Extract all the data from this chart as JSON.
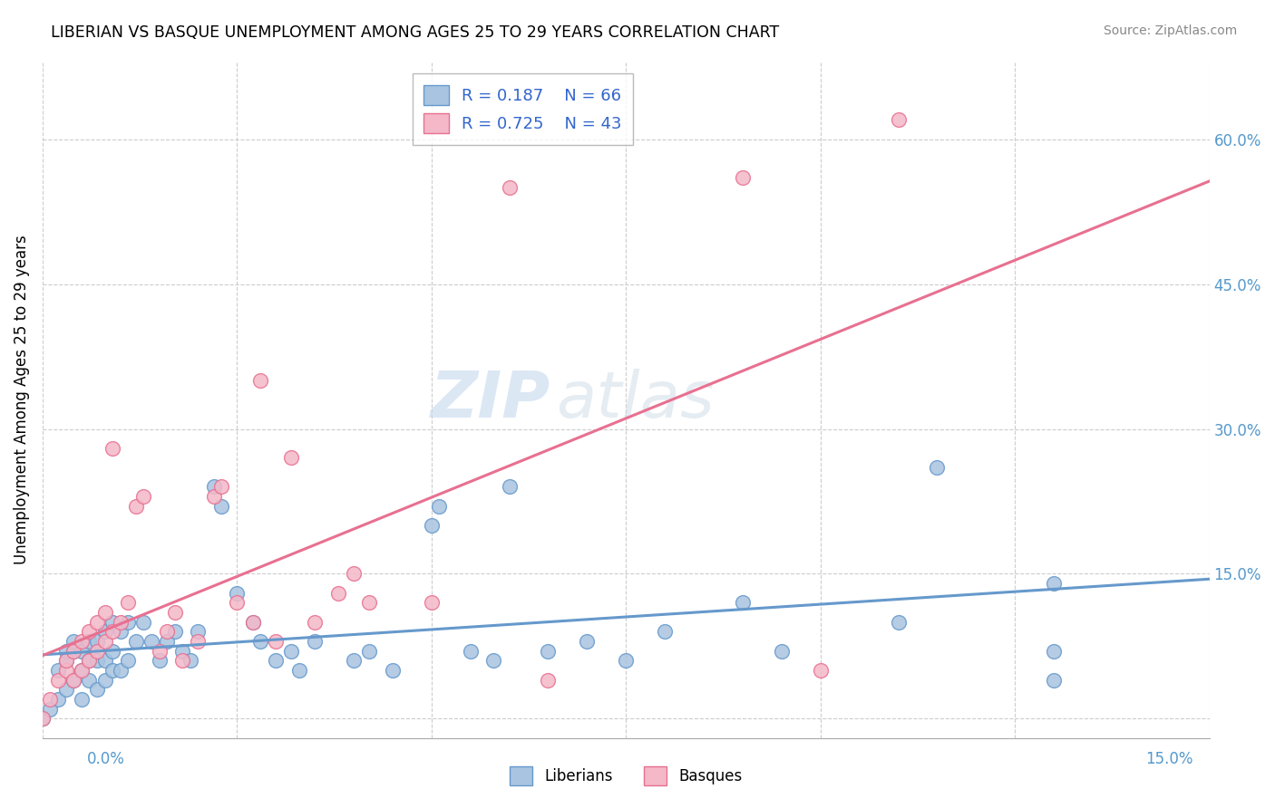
{
  "title": "LIBERIAN VS BASQUE UNEMPLOYMENT AMONG AGES 25 TO 29 YEARS CORRELATION CHART",
  "source": "Source: ZipAtlas.com",
  "ylabel": "Unemployment Among Ages 25 to 29 years",
  "x_range": [
    0.0,
    0.15
  ],
  "y_range": [
    -0.02,
    0.68
  ],
  "liberian_color": "#a8c4e0",
  "basque_color": "#f4b8c8",
  "liberian_line_color": "#6699cc",
  "basque_line_color": "#e87090",
  "legend_R_liberian": "R = 0.187",
  "legend_N_liberian": "N = 66",
  "legend_R_basque": "R = 0.725",
  "legend_N_basque": "N = 43",
  "watermark_zip": "ZIP",
  "watermark_atlas": "atlas",
  "y_ticks": [
    0.0,
    0.15,
    0.3,
    0.45,
    0.6
  ],
  "y_tick_labels": [
    "",
    "15.0%",
    "30.0%",
    "45.0%",
    "60.0%"
  ],
  "liberian_x": [
    0.0,
    0.001,
    0.002,
    0.002,
    0.003,
    0.003,
    0.003,
    0.004,
    0.004,
    0.004,
    0.005,
    0.005,
    0.005,
    0.006,
    0.006,
    0.006,
    0.007,
    0.007,
    0.007,
    0.008,
    0.008,
    0.008,
    0.009,
    0.009,
    0.009,
    0.01,
    0.01,
    0.011,
    0.011,
    0.012,
    0.013,
    0.014,
    0.015,
    0.016,
    0.017,
    0.018,
    0.019,
    0.02,
    0.022,
    0.023,
    0.025,
    0.027,
    0.028,
    0.03,
    0.032,
    0.033,
    0.035,
    0.04,
    0.042,
    0.045,
    0.05,
    0.051,
    0.055,
    0.058,
    0.06,
    0.065,
    0.07,
    0.075,
    0.08,
    0.09,
    0.095,
    0.11,
    0.115,
    0.13,
    0.13,
    0.13
  ],
  "liberian_y": [
    0.0,
    0.01,
    0.02,
    0.05,
    0.03,
    0.06,
    0.07,
    0.04,
    0.07,
    0.08,
    0.02,
    0.05,
    0.07,
    0.04,
    0.06,
    0.08,
    0.03,
    0.06,
    0.08,
    0.04,
    0.06,
    0.09,
    0.05,
    0.07,
    0.1,
    0.05,
    0.09,
    0.06,
    0.1,
    0.08,
    0.1,
    0.08,
    0.06,
    0.08,
    0.09,
    0.07,
    0.06,
    0.09,
    0.24,
    0.22,
    0.13,
    0.1,
    0.08,
    0.06,
    0.07,
    0.05,
    0.08,
    0.06,
    0.07,
    0.05,
    0.2,
    0.22,
    0.07,
    0.06,
    0.24,
    0.07,
    0.08,
    0.06,
    0.09,
    0.12,
    0.07,
    0.1,
    0.26,
    0.04,
    0.07,
    0.14
  ],
  "basque_x": [
    0.0,
    0.001,
    0.002,
    0.003,
    0.003,
    0.004,
    0.004,
    0.005,
    0.005,
    0.006,
    0.006,
    0.007,
    0.007,
    0.008,
    0.008,
    0.009,
    0.009,
    0.01,
    0.011,
    0.012,
    0.013,
    0.015,
    0.016,
    0.017,
    0.018,
    0.02,
    0.022,
    0.023,
    0.025,
    0.027,
    0.028,
    0.03,
    0.032,
    0.035,
    0.038,
    0.04,
    0.042,
    0.05,
    0.06,
    0.065,
    0.09,
    0.1,
    0.11
  ],
  "basque_y": [
    0.0,
    0.02,
    0.04,
    0.05,
    0.06,
    0.04,
    0.07,
    0.05,
    0.08,
    0.06,
    0.09,
    0.07,
    0.1,
    0.08,
    0.11,
    0.09,
    0.28,
    0.1,
    0.12,
    0.22,
    0.23,
    0.07,
    0.09,
    0.11,
    0.06,
    0.08,
    0.23,
    0.24,
    0.12,
    0.1,
    0.35,
    0.08,
    0.27,
    0.1,
    0.13,
    0.15,
    0.12,
    0.12,
    0.55,
    0.04,
    0.56,
    0.05,
    0.62
  ]
}
